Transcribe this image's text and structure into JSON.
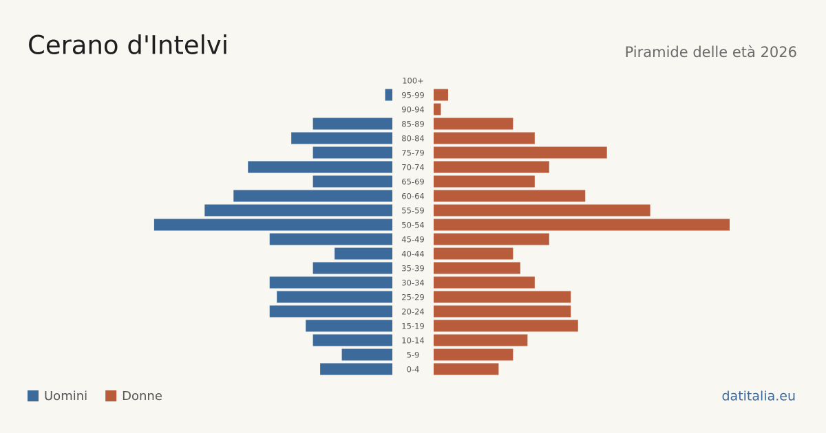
{
  "chart_data": {
    "type": "pyramid",
    "title": "Cerano d'Intelvi",
    "subtitle": "Piramide delle età 2026",
    "source": "datitalia.eu",
    "categories": [
      "100+",
      "95-99",
      "90-94",
      "85-89",
      "80-84",
      "75-79",
      "70-74",
      "65-69",
      "60-64",
      "55-59",
      "50-54",
      "45-49",
      "40-44",
      "35-39",
      "30-34",
      "25-29",
      "20-24",
      "15-19",
      "10-14",
      "5-9",
      "0-4"
    ],
    "series": [
      {
        "name": "Uomini",
        "color": "#3c6a9a",
        "values": [
          0,
          1,
          0,
          11,
          14,
          11,
          20,
          11,
          22,
          26,
          33,
          17,
          8,
          11,
          17,
          16,
          17,
          12,
          11,
          7,
          10
        ]
      },
      {
        "name": "Donne",
        "color": "#b85c3c",
        "values": [
          0,
          2,
          1,
          11,
          14,
          24,
          16,
          14,
          21,
          30,
          41,
          16,
          11,
          12,
          14,
          19,
          19,
          20,
          13,
          11,
          9
        ]
      }
    ]
  }
}
